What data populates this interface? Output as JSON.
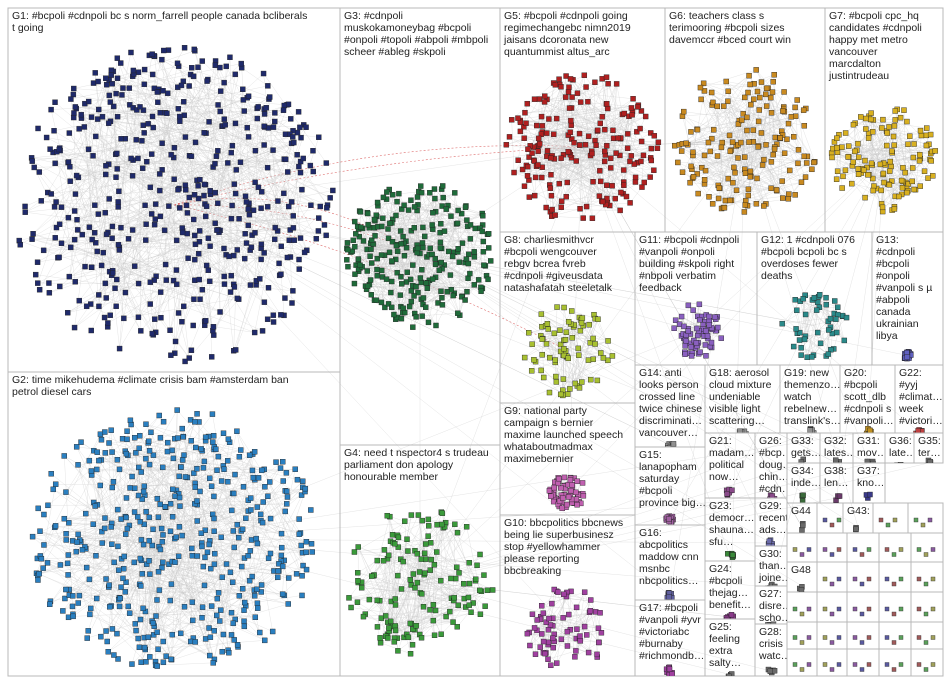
{
  "groups": [
    {
      "lines": [
        "G1: #bcpoli #cdnpoli bc s norm_farrell people canada bcliberals",
        "t going"
      ]
    },
    {
      "lines": [
        "G2: time mikehudema #climate crisis bam #amsterdam ban",
        "petrol diesel cars"
      ]
    },
    {
      "lines": [
        "G3: #cdnpoli",
        "muskokamoneybag #bcpoli",
        "#onpoli #topoli #abpoli #mbpoli",
        "scheer #ableg #skpoli"
      ]
    },
    {
      "lines": [
        "G4: need t nspector4 s trudeau",
        "parliament don apology",
        "honourable member"
      ]
    },
    {
      "lines": [
        "G5: #bcpoli #cdnpoli going",
        "regimechangebc nimn2019",
        "jaisans dcoronata new",
        "quantummist altus_arc"
      ]
    },
    {
      "lines": [
        "G6: teachers class s",
        "terimooring #bcpoli sizes",
        "davemccr #bced court win"
      ]
    },
    {
      "lines": [
        "G7: #bcpoli cpc_hq",
        "candidates #cdnpoli",
        "happy met metro",
        "vancouver",
        "marcdalton",
        "justintrudeau"
      ]
    },
    {
      "lines": [
        "G8: charliesmithvcr",
        "#bcpoli wengcouver",
        "rebgv bcrea fvreb",
        "#cdnpoli #giveusdata",
        "natashafatah steeletalk"
      ]
    },
    {
      "lines": [
        "G9: national party",
        "campaign s bernier",
        "maxime launched speech",
        "whataboutmadmax",
        "maximebernier"
      ]
    },
    {
      "lines": [
        "G10: bbcpolitics bbcnews",
        "being lie superbusinesz",
        "stop #yellowhammer",
        "please reporting",
        "bbcbreaking"
      ]
    },
    {
      "lines": [
        "G11: #bcpoli #cdnpoli",
        "#vanpoli #onpoli",
        "building #skpoli right",
        "#nbpoli verbatim",
        "feedback"
      ]
    },
    {
      "lines": [
        "G12: 1 #cdnpoli 076",
        "#bcpoli bcpoli bc s",
        "overdoses fewer",
        "deaths"
      ]
    },
    {
      "lines": [
        "G13:",
        "#cdnpoli",
        "#bcpoli",
        "#onpoli",
        "#vanpoli s µ",
        "#abpoli",
        "canada",
        "ukrainian",
        "libya"
      ]
    },
    {
      "lines": [
        "G14: anti",
        "looks person",
        "crossed line",
        "twice chinese",
        "discriminati…",
        "vancouver…"
      ]
    },
    {
      "lines": [
        "G15:",
        "lanapopham",
        "saturday",
        "#bcpoli",
        "province big…"
      ]
    },
    {
      "lines": [
        "G16:",
        "abcpolitics",
        "maddow cnn",
        "msnbc",
        "nbcpolitics…"
      ]
    },
    {
      "lines": [
        "G17: #bcpoli",
        "#vanpoli #yvr",
        "#victoriabc",
        "#burnaby",
        "#richmondb…"
      ]
    },
    {
      "lines": [
        "G18: aerosol",
        "cloud mixture",
        "undeniable",
        "visible light",
        "scattering…"
      ]
    },
    {
      "lines": [
        "G19: new",
        "themenzo…",
        "watch",
        "rebelnew…",
        "translink's…"
      ]
    },
    {
      "lines": [
        "G20:",
        "#bcpoli",
        "scott_dlb",
        "#cdnpoli s",
        "#vanpoli…"
      ]
    },
    {
      "lines": [
        "G22:",
        "#yyj",
        "#climat…",
        "week",
        "#victori…"
      ]
    },
    {
      "lines": [
        "G21:",
        "madam…",
        "political",
        "now…"
      ]
    },
    {
      "lines": [
        "G23:",
        "democr…",
        "shauna…",
        "sfu…"
      ]
    },
    {
      "lines": [
        "G24:",
        "#bcpoli",
        "thejag…",
        "benefit…"
      ]
    },
    {
      "lines": [
        "G25:",
        "feeling",
        "extra",
        "salty…"
      ]
    },
    {
      "lines": [
        "G26:",
        "#bcp…",
        "doug…",
        "chin…",
        "#cdn…"
      ]
    },
    {
      "lines": [
        "G29:",
        "recent",
        "ads…"
      ]
    },
    {
      "lines": [
        "G30:",
        "than…",
        "joine…"
      ]
    },
    {
      "lines": [
        "G27:",
        "disre…",
        "scho…"
      ]
    },
    {
      "lines": [
        "G28:",
        "crisis",
        "watc…"
      ]
    },
    {
      "lines": [
        "G33:",
        "gets…"
      ]
    },
    {
      "lines": [
        "G32:",
        "lates…"
      ]
    },
    {
      "lines": [
        "G31:",
        "mov…"
      ]
    },
    {
      "lines": [
        "G36:",
        "late…"
      ]
    },
    {
      "lines": [
        "G35:",
        "ter…"
      ]
    },
    {
      "lines": [
        "G34:",
        "inde…"
      ]
    },
    {
      "lines": [
        "G38:",
        "len…"
      ]
    },
    {
      "lines": [
        "G37:",
        "kno…"
      ]
    },
    {
      "lines": [
        "G44"
      ]
    },
    {
      "lines": [
        "G43:"
      ]
    },
    {
      "lines": [
        "G48"
      ]
    }
  ]
}
